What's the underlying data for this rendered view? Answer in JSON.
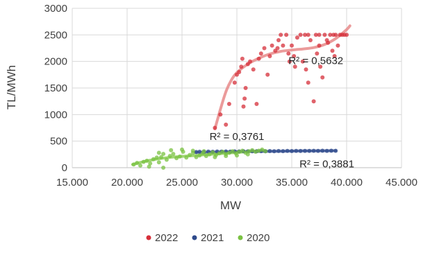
{
  "chart_data": {
    "type": "scatter",
    "xlabel": "MW",
    "ylabel": "TL/MWh",
    "xlim": [
      15000,
      45000
    ],
    "ylim": [
      0,
      3000
    ],
    "x_ticks": [
      15000,
      20000,
      25000,
      30000,
      35000,
      40000,
      45000
    ],
    "x_tick_labels": [
      "15.000",
      "20.000",
      "25.000",
      "30.000",
      "35.000",
      "40.000",
      "45.000"
    ],
    "y_ticks": [
      0,
      500,
      1000,
      1500,
      2000,
      2500,
      3000
    ],
    "y_tick_labels": [
      "0",
      "500",
      "1000",
      "1500",
      "2000",
      "2500",
      "3000"
    ],
    "grid": true,
    "legend_position": "bottom",
    "annotations": [
      {
        "text": "R² = 0,5632",
        "x": 37200,
        "y": 1950
      },
      {
        "text": "R² = 0,3761",
        "x": 30000,
        "y": 520
      },
      {
        "text": "R² = 0,3881",
        "x": 38200,
        "y": 5
      }
    ],
    "series": [
      {
        "name": "2022",
        "color": "#d62f3a",
        "trend_color": "#e88a8a",
        "trend": [
          [
            28000,
            730
          ],
          [
            28500,
            1100
          ],
          [
            29000,
            1430
          ],
          [
            29500,
            1650
          ],
          [
            30000,
            1790
          ],
          [
            31000,
            1950
          ],
          [
            32000,
            2060
          ],
          [
            33000,
            2140
          ],
          [
            34000,
            2190
          ],
          [
            35000,
            2215
          ],
          [
            36000,
            2235
          ],
          [
            37000,
            2260
          ],
          [
            38000,
            2320
          ],
          [
            39000,
            2430
          ],
          [
            40000,
            2600
          ],
          [
            40300,
            2670
          ]
        ],
        "points": [
          [
            28000,
            750
          ],
          [
            28500,
            1000
          ],
          [
            29000,
            810
          ],
          [
            29300,
            1200
          ],
          [
            29800,
            1600
          ],
          [
            30000,
            1750
          ],
          [
            30200,
            1800
          ],
          [
            30400,
            1900
          ],
          [
            30500,
            2050
          ],
          [
            30600,
            1150
          ],
          [
            30700,
            1300
          ],
          [
            30800,
            1500
          ],
          [
            31000,
            1950
          ],
          [
            31200,
            2000
          ],
          [
            31500,
            1850
          ],
          [
            31800,
            1200
          ],
          [
            32000,
            2050
          ],
          [
            32200,
            2150
          ],
          [
            32500,
            2250
          ],
          [
            32800,
            1750
          ],
          [
            33000,
            2100
          ],
          [
            33200,
            2300
          ],
          [
            33500,
            2200
          ],
          [
            33800,
            2400
          ],
          [
            34000,
            2500
          ],
          [
            34200,
            2300
          ],
          [
            34500,
            2500
          ],
          [
            34700,
            2150
          ],
          [
            35000,
            2300
          ],
          [
            35200,
            2100
          ],
          [
            35500,
            2450
          ],
          [
            35800,
            2500
          ],
          [
            36000,
            2000
          ],
          [
            36200,
            2500
          ],
          [
            36500,
            1600
          ],
          [
            36700,
            2400
          ],
          [
            37000,
            1250
          ],
          [
            37200,
            2500
          ],
          [
            37300,
            2150
          ],
          [
            37500,
            2300
          ],
          [
            37800,
            1700
          ],
          [
            38000,
            2500
          ],
          [
            38200,
            2400
          ],
          [
            38500,
            2500
          ],
          [
            38700,
            2200
          ],
          [
            38800,
            2500
          ],
          [
            39000,
            2500
          ],
          [
            39200,
            2300
          ],
          [
            39400,
            2500
          ],
          [
            39600,
            2500
          ],
          [
            39800,
            2500
          ],
          [
            40000,
            2500
          ],
          [
            36500,
            2500
          ],
          [
            37500,
            2500
          ],
          [
            38300,
            2350
          ],
          [
            33700,
            2250
          ],
          [
            34800,
            2000
          ],
          [
            35300,
            1900
          ],
          [
            36300,
            1850
          ],
          [
            37600,
            1900
          ],
          [
            38900,
            2100
          ]
        ]
      },
      {
        "name": "2021",
        "color": "#2e4a8b",
        "trend_color": "#4a5f9e",
        "trend": [
          [
            26200,
            290
          ],
          [
            28000,
            295
          ],
          [
            30000,
            300
          ],
          [
            32000,
            305
          ],
          [
            34000,
            310
          ],
          [
            36000,
            315
          ],
          [
            38000,
            318
          ],
          [
            39000,
            320
          ]
        ],
        "points": [
          [
            26300,
            295
          ],
          [
            26600,
            300
          ],
          [
            27000,
            298
          ],
          [
            27400,
            302
          ],
          [
            27800,
            300
          ],
          [
            28200,
            305
          ],
          [
            28600,
            303
          ],
          [
            29000,
            306
          ],
          [
            29400,
            304
          ],
          [
            29800,
            308
          ],
          [
            30200,
            306
          ],
          [
            30600,
            310
          ],
          [
            31000,
            308
          ],
          [
            31400,
            311
          ],
          [
            31800,
            309
          ],
          [
            32200,
            312
          ],
          [
            32600,
            310
          ],
          [
            33000,
            313
          ],
          [
            33400,
            311
          ],
          [
            33800,
            314
          ],
          [
            34200,
            312
          ],
          [
            34600,
            315
          ],
          [
            35000,
            313
          ],
          [
            35400,
            316
          ],
          [
            35800,
            314
          ],
          [
            36200,
            317
          ],
          [
            36600,
            315
          ],
          [
            37000,
            318
          ],
          [
            37400,
            316
          ],
          [
            37800,
            319
          ],
          [
            38200,
            317
          ],
          [
            38600,
            320
          ],
          [
            39000,
            318
          ]
        ]
      },
      {
        "name": "2020",
        "color": "#7ac142",
        "trend_color": "#8fcf5a",
        "trend": [
          [
            20500,
            60
          ],
          [
            21500,
            115
          ],
          [
            22500,
            155
          ],
          [
            23500,
            185
          ],
          [
            24500,
            205
          ],
          [
            25500,
            220
          ],
          [
            26500,
            235
          ],
          [
            27500,
            250
          ],
          [
            28500,
            265
          ],
          [
            29500,
            280
          ],
          [
            30500,
            295
          ],
          [
            31500,
            310
          ],
          [
            32500,
            325
          ]
        ],
        "points": [
          [
            20600,
            60
          ],
          [
            20900,
            90
          ],
          [
            21200,
            40
          ],
          [
            21500,
            110
          ],
          [
            21800,
            130
          ],
          [
            22100,
            80
          ],
          [
            22400,
            160
          ],
          [
            22700,
            190
          ],
          [
            22900,
            100
          ],
          [
            23100,
            200
          ],
          [
            23300,
            0
          ],
          [
            23600,
            150
          ],
          [
            23900,
            220
          ],
          [
            24200,
            260
          ],
          [
            24500,
            180
          ],
          [
            24800,
            210
          ],
          [
            25100,
            300
          ],
          [
            25400,
            190
          ],
          [
            25700,
            240
          ],
          [
            26000,
            280
          ],
          [
            26300,
            200
          ],
          [
            26600,
            230
          ],
          [
            26900,
            270
          ],
          [
            27200,
            220
          ],
          [
            27500,
            250
          ],
          [
            27800,
            290
          ],
          [
            28100,
            240
          ],
          [
            28400,
            270
          ],
          [
            28700,
            300
          ],
          [
            29000,
            260
          ],
          [
            29300,
            280
          ],
          [
            29600,
            310
          ],
          [
            29900,
            270
          ],
          [
            30200,
            300
          ],
          [
            30500,
            320
          ],
          [
            30800,
            280
          ],
          [
            31100,
            310
          ],
          [
            31400,
            330
          ],
          [
            31700,
            300
          ],
          [
            32000,
            320
          ],
          [
            32300,
            340
          ],
          [
            32600,
            310
          ],
          [
            22900,
            280
          ],
          [
            23300,
            260
          ],
          [
            24000,
            330
          ],
          [
            25000,
            340
          ],
          [
            26000,
            320
          ],
          [
            27000,
            310
          ],
          [
            28000,
            200
          ],
          [
            29000,
            220
          ],
          [
            30000,
            230
          ],
          [
            31000,
            250
          ],
          [
            22000,
            20
          ]
        ]
      }
    ]
  }
}
